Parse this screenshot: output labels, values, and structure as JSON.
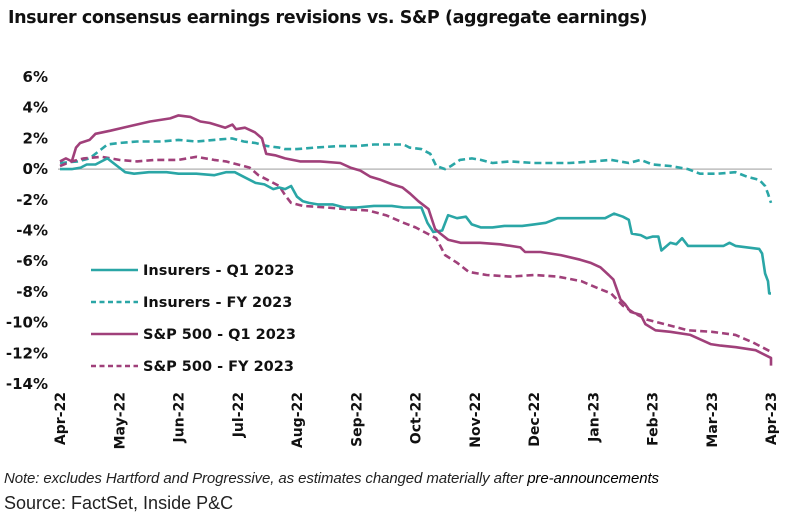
{
  "chart_data": {
    "type": "line",
    "title": "Insurer consensus earnings revisions vs. S&P (aggregate earnings)",
    "xlabel": "",
    "ylabel": "",
    "x_ticks": [
      "Apr-22",
      "May-22",
      "Jun-22",
      "Jul-22",
      "Aug-22",
      "Sep-22",
      "Oct-22",
      "Nov-22",
      "Dec-22",
      "Jan-23",
      "Feb-23",
      "Mar-23",
      "Apr-23"
    ],
    "y_ticks": [
      "6%",
      "4%",
      "2%",
      "0%",
      "-2%",
      "-4%",
      "-6%",
      "-8%",
      "-10%",
      "-12%",
      "-14%"
    ],
    "ylim": [
      -14,
      6
    ],
    "xlim_months": [
      0,
      12
    ],
    "grid": false,
    "zero_line": true,
    "legend_position": "lower-left",
    "x_unit": "months since Apr-22",
    "y_unit": "percent revision",
    "series": [
      {
        "name": "Insurers - Q1 2023",
        "color": "#2aa6a6",
        "style": "solid",
        "points": [
          [
            0,
            0.0
          ],
          [
            0.2,
            0.0
          ],
          [
            0.35,
            0.1
          ],
          [
            0.45,
            0.3
          ],
          [
            0.6,
            0.3
          ],
          [
            0.7,
            0.5
          ],
          [
            0.8,
            0.7
          ],
          [
            0.9,
            0.4
          ],
          [
            1.0,
            0.1
          ],
          [
            1.1,
            -0.2
          ],
          [
            1.25,
            -0.3
          ],
          [
            1.5,
            -0.2
          ],
          [
            1.8,
            -0.2
          ],
          [
            2.0,
            -0.3
          ],
          [
            2.3,
            -0.3
          ],
          [
            2.6,
            -0.4
          ],
          [
            2.8,
            -0.2
          ],
          [
            2.95,
            -0.2
          ],
          [
            3.1,
            -0.5
          ],
          [
            3.3,
            -0.9
          ],
          [
            3.45,
            -1.0
          ],
          [
            3.6,
            -1.3
          ],
          [
            3.7,
            -1.2
          ],
          [
            3.8,
            -1.3
          ],
          [
            3.9,
            -1.1
          ],
          [
            4.0,
            -1.8
          ],
          [
            4.1,
            -2.1
          ],
          [
            4.2,
            -2.2
          ],
          [
            4.35,
            -2.3
          ],
          [
            4.6,
            -2.3
          ],
          [
            4.8,
            -2.5
          ],
          [
            5.0,
            -2.5
          ],
          [
            5.3,
            -2.4
          ],
          [
            5.6,
            -2.4
          ],
          [
            5.8,
            -2.5
          ],
          [
            6.0,
            -2.5
          ],
          [
            6.1,
            -2.5
          ],
          [
            6.2,
            -3.5
          ],
          [
            6.3,
            -4.1
          ],
          [
            6.45,
            -4.0
          ],
          [
            6.55,
            -3.0
          ],
          [
            6.7,
            -3.2
          ],
          [
            6.85,
            -3.1
          ],
          [
            6.95,
            -3.6
          ],
          [
            7.1,
            -3.8
          ],
          [
            7.3,
            -3.8
          ],
          [
            7.5,
            -3.7
          ],
          [
            7.8,
            -3.7
          ],
          [
            8.0,
            -3.6
          ],
          [
            8.2,
            -3.5
          ],
          [
            8.4,
            -3.2
          ],
          [
            8.7,
            -3.2
          ],
          [
            9.0,
            -3.2
          ],
          [
            9.2,
            -3.2
          ],
          [
            9.35,
            -2.9
          ],
          [
            9.5,
            -3.1
          ],
          [
            9.6,
            -3.3
          ],
          [
            9.65,
            -4.2
          ],
          [
            9.8,
            -4.3
          ],
          [
            9.9,
            -4.5
          ],
          [
            10.0,
            -4.4
          ],
          [
            10.1,
            -4.4
          ],
          [
            10.15,
            -5.3
          ],
          [
            10.3,
            -4.8
          ],
          [
            10.4,
            -4.9
          ],
          [
            10.5,
            -4.5
          ],
          [
            10.6,
            -5.0
          ],
          [
            10.8,
            -5.0
          ],
          [
            11.0,
            -5.0
          ],
          [
            11.2,
            -5.0
          ],
          [
            11.3,
            -4.8
          ],
          [
            11.4,
            -5.0
          ],
          [
            11.6,
            -5.1
          ],
          [
            11.8,
            -5.2
          ],
          [
            11.85,
            -5.5
          ],
          [
            11.9,
            -6.8
          ],
          [
            11.95,
            -7.3
          ],
          [
            11.97,
            -8.1
          ],
          [
            12.0,
            -8.1
          ]
        ]
      },
      {
        "name": "Insurers - FY 2023",
        "color": "#2aa6a6",
        "style": "dashed",
        "points": [
          [
            0,
            0.4
          ],
          [
            0.3,
            0.5
          ],
          [
            0.5,
            0.7
          ],
          [
            0.7,
            1.3
          ],
          [
            0.8,
            1.6
          ],
          [
            1.0,
            1.7
          ],
          [
            1.3,
            1.8
          ],
          [
            1.7,
            1.8
          ],
          [
            2.0,
            1.9
          ],
          [
            2.3,
            1.8
          ],
          [
            2.6,
            1.9
          ],
          [
            2.9,
            2.0
          ],
          [
            3.1,
            1.8
          ],
          [
            3.3,
            1.7
          ],
          [
            3.5,
            1.5
          ],
          [
            3.7,
            1.4
          ],
          [
            3.8,
            1.3
          ],
          [
            4.0,
            1.3
          ],
          [
            4.3,
            1.4
          ],
          [
            4.7,
            1.5
          ],
          [
            5.0,
            1.5
          ],
          [
            5.3,
            1.6
          ],
          [
            5.6,
            1.6
          ],
          [
            5.8,
            1.6
          ],
          [
            5.9,
            1.4
          ],
          [
            6.1,
            1.3
          ],
          [
            6.25,
            1.0
          ],
          [
            6.35,
            0.2
          ],
          [
            6.5,
            0.0
          ],
          [
            6.6,
            0.2
          ],
          [
            6.75,
            0.6
          ],
          [
            6.95,
            0.7
          ],
          [
            7.1,
            0.6
          ],
          [
            7.3,
            0.4
          ],
          [
            7.6,
            0.5
          ],
          [
            8.0,
            0.4
          ],
          [
            8.3,
            0.4
          ],
          [
            8.6,
            0.4
          ],
          [
            9.0,
            0.5
          ],
          [
            9.3,
            0.6
          ],
          [
            9.6,
            0.4
          ],
          [
            9.8,
            0.6
          ],
          [
            10.0,
            0.3
          ],
          [
            10.3,
            0.2
          ],
          [
            10.6,
            0.0
          ],
          [
            10.8,
            -0.3
          ],
          [
            11.1,
            -0.3
          ],
          [
            11.4,
            -0.2
          ],
          [
            11.6,
            -0.5
          ],
          [
            11.8,
            -0.7
          ],
          [
            11.9,
            -1.1
          ],
          [
            11.95,
            -1.6
          ],
          [
            12.0,
            -2.2
          ]
        ]
      },
      {
        "name": "S&P 500 - Q1 2023",
        "color": "#a0407a",
        "style": "solid",
        "points": [
          [
            0,
            0.5
          ],
          [
            0.1,
            0.7
          ],
          [
            0.2,
            0.5
          ],
          [
            0.27,
            1.4
          ],
          [
            0.34,
            1.7
          ],
          [
            0.5,
            1.9
          ],
          [
            0.6,
            2.3
          ],
          [
            0.85,
            2.5
          ],
          [
            1.18,
            2.8
          ],
          [
            1.52,
            3.1
          ],
          [
            1.86,
            3.3
          ],
          [
            2.0,
            3.5
          ],
          [
            2.2,
            3.4
          ],
          [
            2.37,
            3.1
          ],
          [
            2.53,
            3.0
          ],
          [
            2.79,
            2.7
          ],
          [
            2.91,
            2.9
          ],
          [
            2.97,
            2.6
          ],
          [
            3.12,
            2.7
          ],
          [
            3.29,
            2.4
          ],
          [
            3.41,
            2.0
          ],
          [
            3.48,
            1.0
          ],
          [
            3.63,
            0.9
          ],
          [
            3.8,
            0.7
          ],
          [
            4.05,
            0.5
          ],
          [
            4.39,
            0.5
          ],
          [
            4.73,
            0.4
          ],
          [
            4.9,
            0.1
          ],
          [
            5.07,
            -0.1
          ],
          [
            5.24,
            -0.5
          ],
          [
            5.41,
            -0.7
          ],
          [
            5.61,
            -1.0
          ],
          [
            5.78,
            -1.2
          ],
          [
            5.91,
            -1.6
          ],
          [
            6.05,
            -2.1
          ],
          [
            6.22,
            -2.6
          ],
          [
            6.33,
            -3.9
          ],
          [
            6.42,
            -4.2
          ],
          [
            6.55,
            -4.6
          ],
          [
            6.76,
            -4.8
          ],
          [
            7.09,
            -4.8
          ],
          [
            7.43,
            -4.9
          ],
          [
            7.77,
            -5.1
          ],
          [
            7.85,
            -5.4
          ],
          [
            8.11,
            -5.4
          ],
          [
            8.45,
            -5.6
          ],
          [
            8.78,
            -5.9
          ],
          [
            8.95,
            -6.1
          ],
          [
            9.12,
            -6.4
          ],
          [
            9.26,
            -6.9
          ],
          [
            9.34,
            -7.2
          ],
          [
            9.46,
            -8.5
          ],
          [
            9.54,
            -8.8
          ],
          [
            9.63,
            -9.3
          ],
          [
            9.8,
            -9.5
          ],
          [
            9.88,
            -10.1
          ],
          [
            10.05,
            -10.5
          ],
          [
            10.3,
            -10.6
          ],
          [
            10.64,
            -10.8
          ],
          [
            10.98,
            -11.4
          ],
          [
            11.15,
            -11.5
          ],
          [
            11.41,
            -11.6
          ],
          [
            11.74,
            -11.8
          ],
          [
            12.0,
            -12.3
          ],
          [
            12.0,
            -12.8
          ]
        ]
      },
      {
        "name": "S&P 500 - FY 2023",
        "color": "#a0407a",
        "style": "dashed",
        "points": [
          [
            0,
            0.2
          ],
          [
            0.2,
            0.5
          ],
          [
            0.4,
            0.7
          ],
          [
            0.7,
            0.8
          ],
          [
            1.0,
            0.6
          ],
          [
            1.3,
            0.5
          ],
          [
            1.6,
            0.6
          ],
          [
            2.0,
            0.6
          ],
          [
            2.3,
            0.8
          ],
          [
            2.6,
            0.6
          ],
          [
            2.8,
            0.5
          ],
          [
            3.0,
            0.3
          ],
          [
            3.2,
            0.1
          ],
          [
            3.35,
            -0.4
          ],
          [
            3.5,
            -0.7
          ],
          [
            3.7,
            -1.1
          ],
          [
            3.8,
            -1.7
          ],
          [
            3.9,
            -2.2
          ],
          [
            4.1,
            -2.4
          ],
          [
            4.5,
            -2.5
          ],
          [
            4.8,
            -2.6
          ],
          [
            5.2,
            -2.7
          ],
          [
            5.5,
            -3.0
          ],
          [
            5.8,
            -3.5
          ],
          [
            6.0,
            -3.8
          ],
          [
            6.2,
            -4.2
          ],
          [
            6.35,
            -4.5
          ],
          [
            6.5,
            -5.6
          ],
          [
            6.7,
            -6.1
          ],
          [
            6.9,
            -6.7
          ],
          [
            7.2,
            -6.9
          ],
          [
            7.6,
            -7.0
          ],
          [
            8.0,
            -6.9
          ],
          [
            8.4,
            -7.0
          ],
          [
            8.8,
            -7.3
          ],
          [
            9.1,
            -7.8
          ],
          [
            9.3,
            -8.1
          ],
          [
            9.5,
            -8.9
          ],
          [
            9.7,
            -9.4
          ],
          [
            9.9,
            -9.8
          ],
          [
            10.2,
            -10.1
          ],
          [
            10.6,
            -10.5
          ],
          [
            11.0,
            -10.6
          ],
          [
            11.4,
            -10.8
          ],
          [
            11.7,
            -11.3
          ],
          [
            12.0,
            -11.9
          ]
        ]
      }
    ]
  },
  "legend": {
    "items": [
      {
        "label": "Insurers - Q1 2023"
      },
      {
        "label": "Insurers - FY 2023"
      },
      {
        "label": "S&P 500 - Q1 2023"
      },
      {
        "label": "S&P 500 - FY 2023"
      }
    ]
  },
  "footer": {
    "note_prefix": "Note: excludes Hartford and Progressive, as estimates changed materially after ",
    "note_emph": "pre-announcements",
    "source": "Source: FactSet, Inside P&C"
  },
  "colors": {
    "insurers": "#2aa6a6",
    "sp500": "#a0407a",
    "zero_line": "#bdbdbd"
  }
}
